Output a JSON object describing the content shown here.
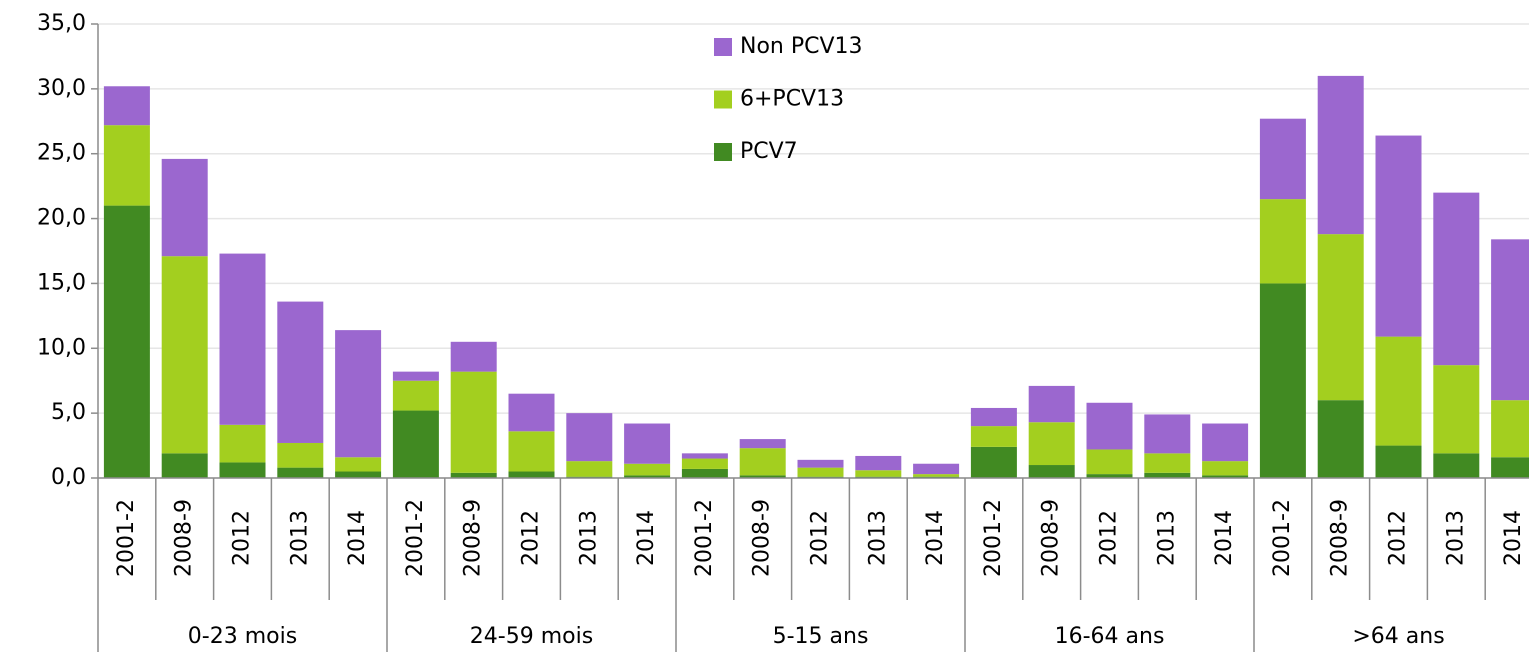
{
  "chart_data": {
    "type": "stacked_bar",
    "categories": [
      "2001-2",
      "2008-9",
      "2012",
      "2013",
      "2014",
      "2001-2",
      "2008-9",
      "2012",
      "2013",
      "2014",
      "2001-2",
      "2008-9",
      "2012",
      "2013",
      "2014",
      "2001-2",
      "2008-9",
      "2012",
      "2013",
      "2014",
      "2001-2",
      "2008-9",
      "2012",
      "2013",
      "2014"
    ],
    "groups": [
      "0-23 mois",
      "24-59 mois",
      "5-15 ans",
      "16-64 ans",
      ">64 ans"
    ],
    "series": [
      {
        "name": "PCV7",
        "color": "#418a22",
        "values": [
          21.0,
          1.9,
          1.2,
          0.8,
          0.5,
          5.2,
          0.4,
          0.5,
          0.1,
          0.2,
          0.7,
          0.2,
          0.1,
          0.1,
          0.1,
          2.4,
          1.0,
          0.3,
          0.4,
          0.2,
          15.0,
          6.0,
          2.5,
          1.9,
          1.6
        ]
      },
      {
        "name": "6+PCV13",
        "color": "#a3cf1f",
        "values": [
          6.2,
          15.2,
          2.9,
          1.9,
          1.1,
          2.3,
          7.8,
          3.1,
          1.2,
          0.9,
          0.8,
          2.1,
          0.7,
          0.5,
          0.2,
          1.6,
          3.3,
          1.9,
          1.5,
          1.1,
          6.5,
          12.8,
          8.4,
          6.8,
          4.4
        ]
      },
      {
        "name": "Non PCV13",
        "color": "#9b67cf",
        "values": [
          3.0,
          7.5,
          13.2,
          10.9,
          9.8,
          0.7,
          2.3,
          2.9,
          3.7,
          3.1,
          0.4,
          0.7,
          0.6,
          1.1,
          0.8,
          1.4,
          2.8,
          3.6,
          3.0,
          2.9,
          6.2,
          12.2,
          15.5,
          13.3,
          12.4
        ]
      }
    ],
    "ylim": [
      0,
      35
    ],
    "yticks": [
      {
        "value": 0,
        "label": "0,0"
      },
      {
        "value": 5,
        "label": "5,0"
      },
      {
        "value": 10,
        "label": "10,0"
      },
      {
        "value": 15,
        "label": "15,0"
      },
      {
        "value": 20,
        "label": "20,0"
      },
      {
        "value": 25,
        "label": "25,0"
      },
      {
        "value": 30,
        "label": "30,0"
      },
      {
        "value": 35,
        "label": "35,0"
      }
    ],
    "grid": true
  }
}
